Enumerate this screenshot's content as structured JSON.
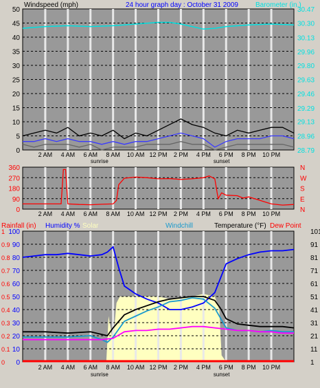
{
  "title": "24 hour graph day : October 31 2009",
  "colors": {
    "plot_bg": "#999999",
    "grid": "#000000",
    "label_black": "#000000",
    "baro": "#00e0e0",
    "wind": "#000000",
    "gust": "#3a3aff",
    "red": "#ff0000",
    "humidity": "#0000ff",
    "solar": "#ffffc0",
    "windchill": "#1a9acd",
    "temperature": "#000000",
    "dewpoint": "#ff00ff"
  },
  "chart_data": [
    {
      "type": "line",
      "name": "wind-barometer",
      "ylabel": "Windspeed (mph)",
      "ylabel_right": "Barometer (in.)",
      "x_ticks": [
        "2 AM",
        "4 AM",
        "6 AM",
        "8 AM",
        "10 AM",
        "12 PM",
        "2 PM",
        "4 PM",
        "6 PM",
        "8 PM",
        "10 PM"
      ],
      "x_tick_hours": [
        2,
        4,
        6,
        8,
        10,
        12,
        14,
        16,
        18,
        20,
        22
      ],
      "annotations": [
        {
          "text": "sunrise",
          "hour": 6.8
        },
        {
          "text": "sunset",
          "hour": 17.6
        }
      ],
      "ylim": [
        0,
        50
      ],
      "y_ticks": [
        0,
        5,
        10,
        15,
        20,
        25,
        30,
        35,
        40,
        45,
        50
      ],
      "ylim_right": [
        28.79,
        30.47
      ],
      "y_ticks_right": [
        "28.79",
        "28.96",
        "29.13",
        "29.29",
        "29.46",
        "29.63",
        "29.80",
        "29.96",
        "30.13",
        "30.30",
        "30.47"
      ],
      "series": [
        {
          "role": "barometer",
          "axis": "right",
          "x": [
            0,
            2,
            4,
            6,
            8,
            10,
            12,
            13,
            14,
            15,
            16,
            17,
            18,
            20,
            22,
            24
          ],
          "values": [
            30.24,
            30.26,
            30.27,
            30.26,
            30.27,
            30.29,
            30.31,
            30.31,
            30.29,
            30.26,
            30.23,
            30.24,
            30.26,
            30.28,
            30.29,
            30.28
          ]
        },
        {
          "role": "wind-high",
          "axis": "left",
          "x": [
            0,
            1,
            2,
            3,
            4,
            5,
            6,
            7,
            8,
            9,
            10,
            11,
            12,
            13,
            14,
            15,
            16,
            17,
            18,
            19,
            20,
            21,
            22,
            23,
            24
          ],
          "values": [
            5,
            6,
            7,
            6,
            8,
            5,
            6,
            5,
            7,
            4,
            6,
            5,
            7,
            9,
            11,
            9,
            8,
            6,
            5,
            7,
            6,
            7,
            8,
            8,
            6
          ]
        },
        {
          "role": "wind-average",
          "axis": "left",
          "x": [
            0,
            1,
            2,
            3,
            4,
            5,
            6,
            7,
            8,
            9,
            10,
            11,
            12,
            13,
            14,
            15,
            16,
            17,
            18,
            19,
            20,
            21,
            22,
            23,
            24
          ],
          "values": [
            3,
            3,
            4,
            3,
            4,
            3,
            3,
            2,
            3,
            2,
            3,
            3,
            4,
            5,
            6,
            5,
            4,
            1,
            3,
            4,
            4,
            4,
            5,
            5,
            4
          ]
        },
        {
          "role": "wind-low",
          "axis": "left",
          "x": [
            0,
            1,
            2,
            3,
            4,
            5,
            6,
            7,
            8,
            9,
            10,
            11,
            12,
            13,
            14,
            15,
            16,
            17,
            18,
            19,
            20,
            21,
            22,
            23,
            24
          ],
          "values": [
            2,
            1,
            2,
            2,
            2,
            1,
            2,
            0,
            1,
            1,
            1,
            2,
            2,
            2,
            3,
            2,
            2,
            0,
            1,
            2,
            2,
            2,
            2,
            2,
            1
          ]
        }
      ]
    },
    {
      "type": "line",
      "name": "wind-direction",
      "ylim": [
        0,
        360
      ],
      "y_ticks": [
        0,
        90,
        180,
        270,
        360
      ],
      "y_ticks_right": [
        "N",
        "E",
        "S",
        "W",
        "N"
      ],
      "x": [
        0,
        3.2,
        3.4,
        3.6,
        3.8,
        4,
        5,
        6,
        7,
        8,
        8.3,
        8.5,
        9,
        10,
        11,
        12,
        13,
        14,
        15,
        16,
        16.5,
        17,
        17.3,
        17.6,
        18,
        19,
        19.5,
        20,
        21,
        22,
        23,
        24
      ],
      "values": [
        45,
        45,
        45,
        340,
        340,
        45,
        40,
        38,
        42,
        45,
        75,
        210,
        265,
        275,
        270,
        260,
        262,
        255,
        260,
        270,
        285,
        260,
        90,
        140,
        120,
        115,
        95,
        105,
        75,
        45,
        35,
        40
      ]
    },
    {
      "type": "line",
      "name": "temperature-humidity",
      "ylabel": "Rainfall (in)",
      "legend": [
        "Humidity %",
        "Solar",
        "Windchill",
        "Temperature (°F)",
        "Dew Point"
      ],
      "ylim_left": [
        0,
        100
      ],
      "y_ticks_left": [
        0,
        10,
        20,
        30,
        40,
        50,
        60,
        70,
        80,
        90,
        100
      ],
      "y_ticks_rain": [
        "0",
        "0.1",
        "0.2",
        "0.3",
        "0.4",
        "0.5",
        "0.6",
        "0.7",
        "0.8",
        "0.9",
        "1"
      ],
      "ylim_right": [
        1,
        101
      ],
      "y_ticks_right": [
        1,
        11,
        21,
        31,
        41,
        51,
        61,
        71,
        81,
        91,
        101
      ],
      "series": [
        {
          "name": "Humidity %",
          "x": [
            0,
            1,
            2,
            3,
            4,
            5,
            6,
            7,
            7.5,
            8,
            8.5,
            9,
            10,
            11,
            12,
            13,
            14,
            15,
            16,
            17,
            18,
            19,
            20,
            21,
            22,
            23,
            24
          ],
          "values": [
            80,
            81,
            82,
            82,
            83,
            82,
            81,
            82,
            84,
            88,
            72,
            58,
            52,
            48,
            45,
            40,
            40,
            42,
            45,
            53,
            75,
            79,
            82,
            84,
            85,
            85,
            86
          ]
        },
        {
          "name": "Solar",
          "x": [
            0,
            7.4,
            7.6,
            8,
            8.3,
            8.6,
            10,
            12,
            13,
            14,
            15,
            16,
            17,
            17.4,
            17.6,
            18,
            24
          ],
          "values": [
            0,
            0,
            35,
            15,
            45,
            50,
            50,
            50,
            48,
            49,
            50,
            52,
            50,
            40,
            5,
            0,
            0
          ]
        },
        {
          "name": "Windchill",
          "x": [
            0,
            2,
            4,
            6,
            7,
            7.5,
            8,
            9,
            10,
            11,
            12,
            13,
            14,
            15,
            16,
            17,
            18,
            19,
            20,
            21,
            22,
            23,
            24
          ],
          "values": [
            20,
            20,
            20,
            21,
            18,
            16,
            20,
            32,
            36,
            40,
            43,
            47,
            48,
            50,
            49,
            42,
            27,
            25,
            25,
            24,
            25,
            24,
            24
          ]
        },
        {
          "name": "Temperature (°F)",
          "x": [
            0,
            2,
            4,
            6,
            7,
            7.5,
            8,
            9,
            10,
            11,
            12,
            13,
            14,
            15,
            16,
            17,
            17.5,
            18,
            19,
            20,
            21,
            22,
            23,
            24
          ],
          "values": [
            24,
            24,
            23,
            24,
            22,
            21,
            27,
            37,
            41,
            44,
            47,
            49,
            50,
            51,
            51,
            48,
            42,
            34,
            30,
            29,
            28,
            28,
            28,
            27
          ]
        },
        {
          "name": "Dew Point",
          "x": [
            0,
            2,
            4,
            6,
            7,
            8,
            9,
            10,
            11,
            12,
            13,
            14,
            15,
            16,
            17,
            18,
            19,
            20,
            21,
            22,
            23,
            24
          ],
          "values": [
            18,
            18,
            18,
            18,
            18,
            19,
            24,
            25,
            25,
            26,
            26,
            27,
            28,
            28,
            27,
            26,
            25,
            25,
            24,
            24,
            23,
            23
          ]
        },
        {
          "name": "Rainfall (in)",
          "x": [
            0,
            24
          ],
          "values": [
            0.005,
            0.005
          ]
        }
      ]
    }
  ]
}
